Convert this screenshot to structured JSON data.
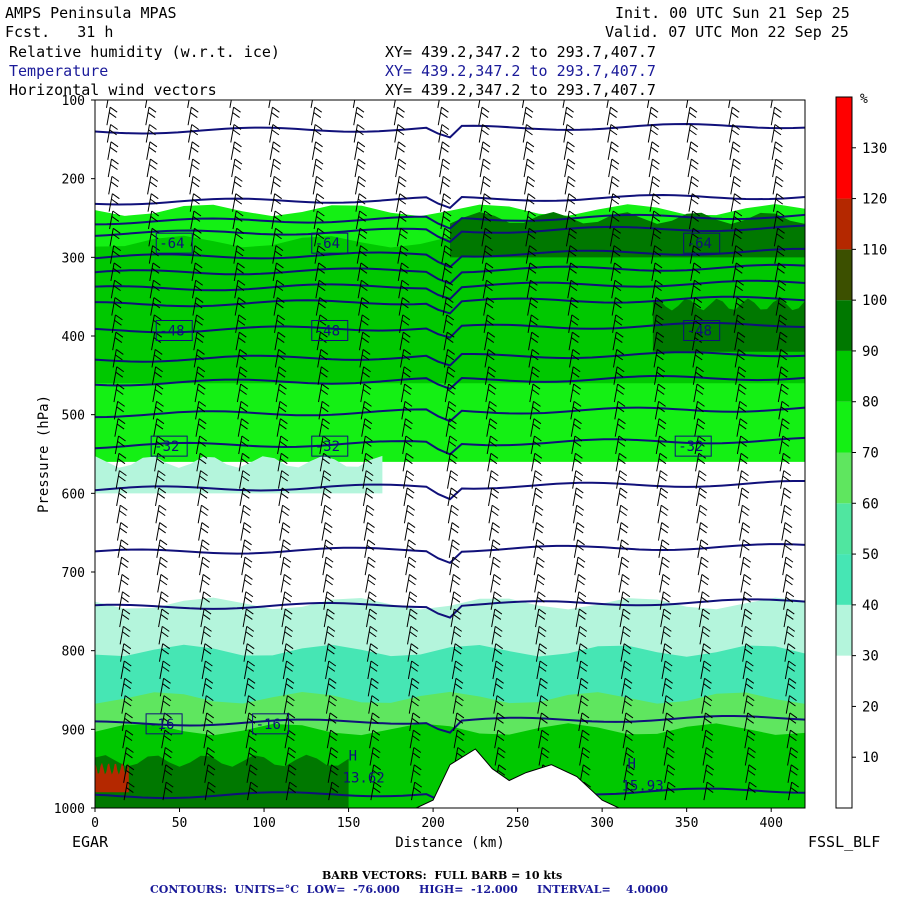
{
  "header": {
    "model": "AMPS Peninsula MPAS",
    "fcst": "Fcst.   31 h",
    "init": "Init. 00 UTC Sun 21 Sep 25",
    "valid": "Valid. 07 UTC Mon 22 Sep 25",
    "fields": [
      {
        "name": "Relative humidity (w.r.t. ice)",
        "xy": "XY= 439.2,347.2 to 293.7,407.7",
        "color": "#000000"
      },
      {
        "name": "Temperature",
        "xy": "XY= 439.2,347.2 to 293.7,407.7",
        "color": "#1a1a99"
      },
      {
        "name": "Horizontal wind vectors",
        "xy": "XY= 439.2,347.2 to 293.7,407.7",
        "color": "#000000"
      }
    ]
  },
  "footer": {
    "left_station": "EGAR",
    "right_station": "FSSL_BLF",
    "barb_note": "BARB VECTORS:  FULL BARB = 10 kts",
    "contour_note": "CONTOURS:  UNITS=°C  LOW=  -76.000     HIGH=  -12.000     INTERVAL=    4.0000"
  },
  "chart_data": {
    "type": "heatmap",
    "title": "AMPS Peninsula MPAS",
    "xlabel": "Distance (km)",
    "ylabel": "Pressure (hPa)",
    "xlim": [
      0,
      420
    ],
    "ylim": [
      1000,
      100
    ],
    "x_ticks": [
      0,
      50,
      100,
      150,
      200,
      250,
      300,
      350,
      400
    ],
    "y_ticks": [
      100,
      200,
      300,
      400,
      500,
      600,
      700,
      800,
      900,
      1000
    ],
    "colorbar": {
      "unit": "%",
      "ticks": [
        10,
        20,
        30,
        40,
        50,
        60,
        70,
        80,
        90,
        100,
        110,
        120,
        130
      ],
      "bands": [
        {
          "from": 0,
          "to": 10,
          "color": "#ffffff"
        },
        {
          "from": 10,
          "to": 20,
          "color": "#ffffff"
        },
        {
          "from": 20,
          "to": 30,
          "color": "#ffffff"
        },
        {
          "from": 30,
          "to": 40,
          "color": "#b4f5dc"
        },
        {
          "from": 40,
          "to": 50,
          "color": "#46e6b4"
        },
        {
          "from": 50,
          "to": 60,
          "color": "#50e6a0"
        },
        {
          "from": 60,
          "to": 70,
          "color": "#5fe65f"
        },
        {
          "from": 70,
          "to": 80,
          "color": "#14f014"
        },
        {
          "from": 80,
          "to": 90,
          "color": "#00c800"
        },
        {
          "from": 90,
          "to": 100,
          "color": "#007800"
        },
        {
          "from": 100,
          "to": 110,
          "color": "#3c5000"
        },
        {
          "from": 110,
          "to": 120,
          "color": "#b42800"
        },
        {
          "from": 120,
          "to": 140,
          "color": "#ff0000"
        }
      ]
    },
    "rh_layers": [
      {
        "p_top": 240,
        "p_bot": 560,
        "rh": 70
      },
      {
        "p_top": 280,
        "p_bot": 460,
        "rh": 80
      },
      {
        "p_top": 250,
        "p_bot": 300,
        "rh": 92,
        "x0": 210,
        "x1": 420
      },
      {
        "p_top": 330,
        "p_bot": 450,
        "rh": 85,
        "x0": 210,
        "x1": 300
      },
      {
        "p_top": 360,
        "p_bot": 420,
        "rh": 92,
        "x0": 330,
        "x1": 420
      },
      {
        "p_top": 560,
        "p_bot": 600,
        "rh": 35,
        "x0": 0,
        "x1": 170
      },
      {
        "p_top": 740,
        "p_bot": 1000,
        "rh": 35
      },
      {
        "p_top": 800,
        "p_bot": 1000,
        "rh": 45
      },
      {
        "p_top": 860,
        "p_bot": 1000,
        "rh": 65
      },
      {
        "p_top": 900,
        "p_bot": 1000,
        "rh": 80
      },
      {
        "p_top": 940,
        "p_bot": 1000,
        "rh": 95,
        "x0": 0,
        "x1": 150
      },
      {
        "p_top": 950,
        "p_bot": 980,
        "rh": 115,
        "x0": 0,
        "x1": 20
      }
    ],
    "temperature_contours": [
      {
        "label": "-64",
        "p": 282,
        "label_x": [
          38,
          130,
          350
        ]
      },
      {
        "label": "-48",
        "p": 393,
        "label_x": [
          38,
          130,
          350
        ]
      },
      {
        "label": "-32",
        "p": 540,
        "label_x": [
          35,
          130,
          345
        ]
      },
      {
        "label": "-16",
        "p": 893,
        "label_x": [
          32,
          95
        ]
      }
    ],
    "temperature_levels_p": [
      140,
      230,
      255,
      270,
      300,
      320,
      340,
      360,
      393,
      430,
      460,
      500,
      540,
      595,
      675,
      745,
      893,
      985
    ],
    "highs": [
      {
        "label": "H",
        "value": "13.62",
        "x": 150,
        "p": 950
      },
      {
        "label": "H",
        "value": "15.93",
        "x": 315,
        "p": 960
      }
    ],
    "terrain": [
      {
        "x": 190,
        "p": 1000
      },
      {
        "x": 200,
        "p": 990
      },
      {
        "x": 210,
        "p": 945
      },
      {
        "x": 225,
        "p": 925
      },
      {
        "x": 235,
        "p": 950
      },
      {
        "x": 245,
        "p": 965
      },
      {
        "x": 255,
        "p": 955
      },
      {
        "x": 270,
        "p": 945
      },
      {
        "x": 285,
        "p": 960
      },
      {
        "x": 300,
        "p": 990
      },
      {
        "x": 310,
        "p": 1000
      }
    ],
    "wind_barb_x": [
      12,
      35,
      60,
      85,
      108,
      133,
      158,
      182,
      208,
      232,
      258,
      282,
      308,
      332,
      355,
      380,
      405
    ]
  }
}
